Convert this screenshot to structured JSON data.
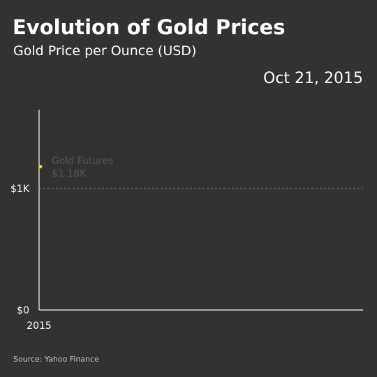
{
  "header": {
    "title": "Evolution of Gold Prices",
    "subtitle": "Gold Price per Ounce (USD)",
    "current_date": "Oct 21, 2015"
  },
  "footer": {
    "source": "Source: Yahoo Finance"
  },
  "colors": {
    "background": "#333132",
    "axis": "#ffffff",
    "gridline": "#8a8a8a",
    "series": "#ffd700",
    "series_label": "#555354"
  },
  "chart_data": {
    "type": "line",
    "title": "Evolution of Gold Prices",
    "subtitle": "Gold Price per Ounce (USD)",
    "xlabel": "",
    "ylabel": "",
    "x_tick_labels": [
      "2015"
    ],
    "y_ticks": [
      {
        "value": 0,
        "label": "$0"
      },
      {
        "value": 1000,
        "label": "$1K"
      }
    ],
    "ylim": [
      0,
      1650
    ],
    "grid": "dashed line at $1K",
    "series": [
      {
        "name": "Gold Futures",
        "value_label": "$1.18K",
        "points": [
          {
            "date": "Oct 21, 2015",
            "value": 1180
          }
        ]
      }
    ]
  }
}
